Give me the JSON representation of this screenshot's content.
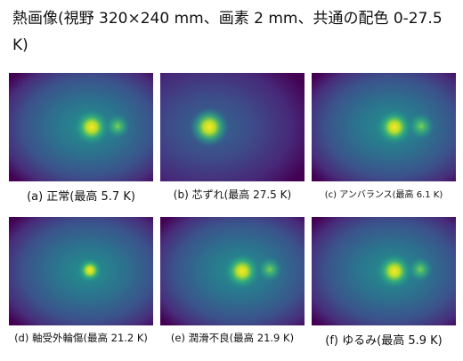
{
  "title": "熱画像(視野 320×240 mm、画素 2 mm、共通の配色 0-27.5 K)",
  "panels": [
    {
      "caption": "(a) 正常(最高 5.7 K)"
    },
    {
      "caption": "(b) 芯ずれ(最高 27.5 K)"
    },
    {
      "caption": "(c) アンバランス(最高 6.1 K)"
    },
    {
      "caption": "(d) 軸受外輪傷(最高 21.2 K)"
    },
    {
      "caption": "(e) 潤滑不良(最高 21.9 K)"
    },
    {
      "caption": "(f) ゆるみ(最高 5.9 K)"
    }
  ]
}
